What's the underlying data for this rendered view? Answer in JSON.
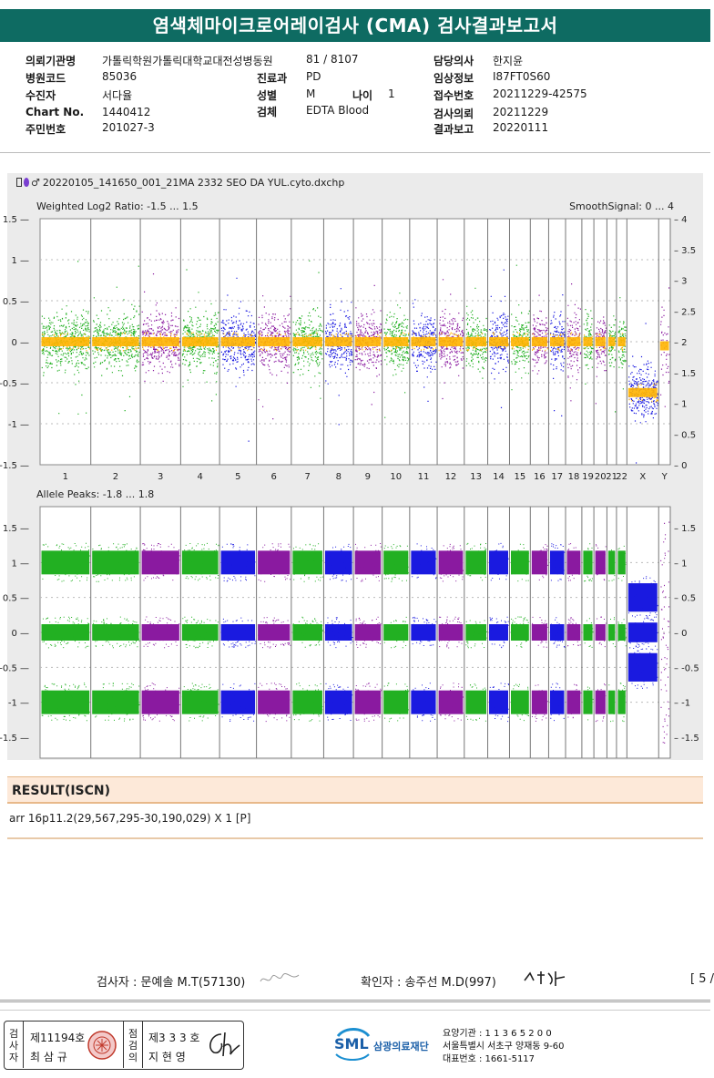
{
  "title": "염색체마이크로어레이검사 (CMA) 검사결과보고서",
  "patient": {
    "institution_label": "의뢰기관명",
    "institution": "가톨릭학원가톨릭대학교대전성병동원",
    "hospital_code_label": "병원코드",
    "hospital_code": "85036",
    "examinee_label": "수진자",
    "examinee": "서다율",
    "chart_no_label": "Chart No.",
    "chart_no": "1440412",
    "resident_no_label": "주민번호",
    "resident_no": "201027-3",
    "ward": "81 / 8107",
    "department_label": "진료과",
    "department": "PD",
    "sex_label": "성별",
    "sex": "M",
    "age_label": "나이",
    "age": "1",
    "specimen_label": "검체",
    "specimen": "EDTA Blood",
    "doctor_label": "담당의사",
    "doctor": "한지윤",
    "clinical_info_label": "임상정보",
    "clinical_info": "I87FT0S60",
    "receipt_no_label": "접수번호",
    "receipt_no": "20211229-42575",
    "request_date_label": "검사의뢰",
    "request_date": "20211229",
    "report_date_label": "결과보고",
    "report_date": "20220111"
  },
  "plot": {
    "file_name": "20220105_141650_001_21MA 2332 SEO DA YUL.cyto.dxchp",
    "top_label": "Weighted Log2 Ratio: -1.5 ... 1.5",
    "top_right_label": "SmoothSignal: 0 ... 4",
    "bottom_label": "Allele Peaks: -1.8 ... 1.8",
    "top_left_ticks": [
      "1.5",
      "1",
      "0.5",
      "0",
      "-0.5",
      "-1",
      "-1.5"
    ],
    "top_right_ticks": [
      "4",
      "3.5",
      "3",
      "2.5",
      "2",
      "1.5",
      "1",
      "0.5",
      "0"
    ],
    "bottom_left_ticks": [
      "1.5",
      "1",
      "0.5",
      "0",
      "-0.5",
      "-1",
      "-1.5"
    ],
    "bottom_right_ticks": [
      "1.5",
      "1",
      "0.5",
      "0",
      "-0.5",
      "-1",
      "-1.5"
    ],
    "chromosomes": [
      "1",
      "2",
      "3",
      "4",
      "5",
      "6",
      "7",
      "8",
      "9",
      "10",
      "11",
      "12",
      "13",
      "14",
      "15",
      "16",
      "17",
      "18",
      "19",
      "20",
      "21",
      "22",
      "X",
      "Y"
    ],
    "colors": {
      "green": "#22b022",
      "blue": "#1a1ae0",
      "purple": "#8a1aa0",
      "orange": "#ffb400"
    }
  },
  "result": {
    "heading": "RESULT(ISCN)",
    "text": "arr 16p11.2(29,567,295-30,190,029) X 1 [P]"
  },
  "signatures": {
    "examiner": "검사자 : 문예솔 M.T(57130)",
    "confirmer": "확인자 : 송주선 M.D(997)",
    "page": "[ 5 /"
  },
  "footer": {
    "inspector_vertical": "검사자",
    "inspector_license": "제11194호",
    "inspector_name": "최 삼 규",
    "checker_vertical": "점검의",
    "checker_license": "제3 3 3 호",
    "checker_name": "지 현 영",
    "lab_logo": "SML",
    "lab_name": "삼광의료재단",
    "lab_code": "요양기관 : 1 1 3 6 5 2 0 0",
    "lab_address": "서울특별시 서초구 양재동 9-60",
    "lab_phone": "대표번호 : 1661-5117"
  }
}
